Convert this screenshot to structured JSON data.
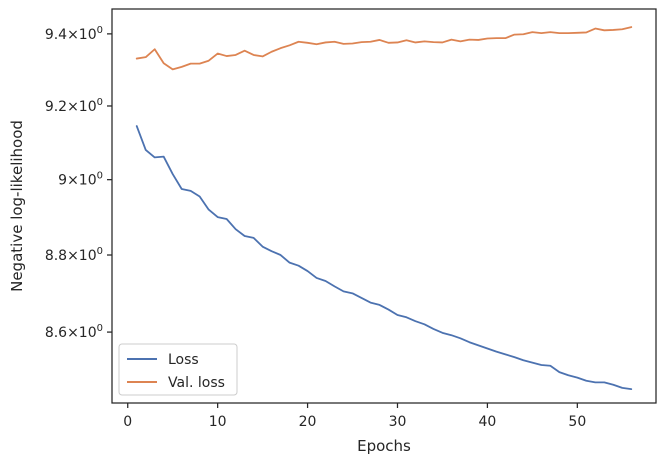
{
  "chart_data": {
    "type": "line",
    "xlabel": "Epochs",
    "ylabel": "Negative log-likelihood",
    "xlim": [
      -1.75,
      58.75
    ],
    "ylim": [
      8.42,
      9.47
    ],
    "yscale": "log",
    "grid": false,
    "legend_position": "lower left",
    "x_ticks": [
      0,
      10,
      20,
      30,
      40,
      50
    ],
    "x_tick_labels": [
      "0",
      "10",
      "20",
      "30",
      "40",
      "50"
    ],
    "y_ticks": [
      8.6,
      8.8,
      9.0,
      9.2,
      9.4
    ],
    "y_tick_labels": [
      {
        "mantissa": "8.6",
        "base": "10",
        "exp": "0"
      },
      {
        "mantissa": "8.8",
        "base": "10",
        "exp": "0"
      },
      {
        "mantissa": "9",
        "base": "10",
        "exp": "0"
      },
      {
        "mantissa": "9.2",
        "base": "10",
        "exp": "0"
      },
      {
        "mantissa": "9.4",
        "base": "10",
        "exp": "0"
      }
    ],
    "x": [
      1,
      2,
      3,
      4,
      5,
      6,
      7,
      8,
      9,
      10,
      11,
      12,
      13,
      14,
      15,
      16,
      17,
      18,
      19,
      20,
      21,
      22,
      23,
      24,
      25,
      26,
      27,
      28,
      29,
      30,
      31,
      32,
      33,
      34,
      35,
      36,
      37,
      38,
      39,
      40,
      41,
      42,
      43,
      44,
      45,
      46,
      47,
      48,
      49,
      50,
      51,
      52,
      53,
      54,
      55,
      56
    ],
    "series": [
      {
        "name": "Loss",
        "color": "#4c72b0",
        "values": [
          9.145,
          9.08,
          9.06,
          9.062,
          9.015,
          8.975,
          8.97,
          8.955,
          8.92,
          8.9,
          8.895,
          8.868,
          8.85,
          8.845,
          8.822,
          8.81,
          8.8,
          8.78,
          8.772,
          8.758,
          8.74,
          8.732,
          8.718,
          8.705,
          8.7,
          8.688,
          8.676,
          8.67,
          8.658,
          8.644,
          8.638,
          8.628,
          8.62,
          8.608,
          8.598,
          8.592,
          8.584,
          8.574,
          8.566,
          8.558,
          8.55,
          8.543,
          8.536,
          8.528,
          8.522,
          8.516,
          8.514,
          8.498,
          8.49,
          8.484,
          8.476,
          8.472,
          8.472,
          8.466,
          8.458,
          8.455
        ]
      },
      {
        "name": "Val. loss",
        "color": "#dd8452",
        "values": [
          9.331,
          9.335,
          9.357,
          9.318,
          9.301,
          9.308,
          9.317,
          9.317,
          9.325,
          9.345,
          9.338,
          9.341,
          9.353,
          9.341,
          9.337,
          9.35,
          9.36,
          9.368,
          9.378,
          9.375,
          9.371,
          9.376,
          9.378,
          9.372,
          9.373,
          9.377,
          9.378,
          9.383,
          9.375,
          9.376,
          9.382,
          9.376,
          9.379,
          9.377,
          9.376,
          9.384,
          9.379,
          9.384,
          9.383,
          9.387,
          9.388,
          9.388,
          9.398,
          9.399,
          9.405,
          9.402,
          9.405,
          9.402,
          9.402,
          9.403,
          9.404,
          9.415,
          9.41,
          9.411,
          9.413,
          9.419
        ]
      }
    ]
  }
}
